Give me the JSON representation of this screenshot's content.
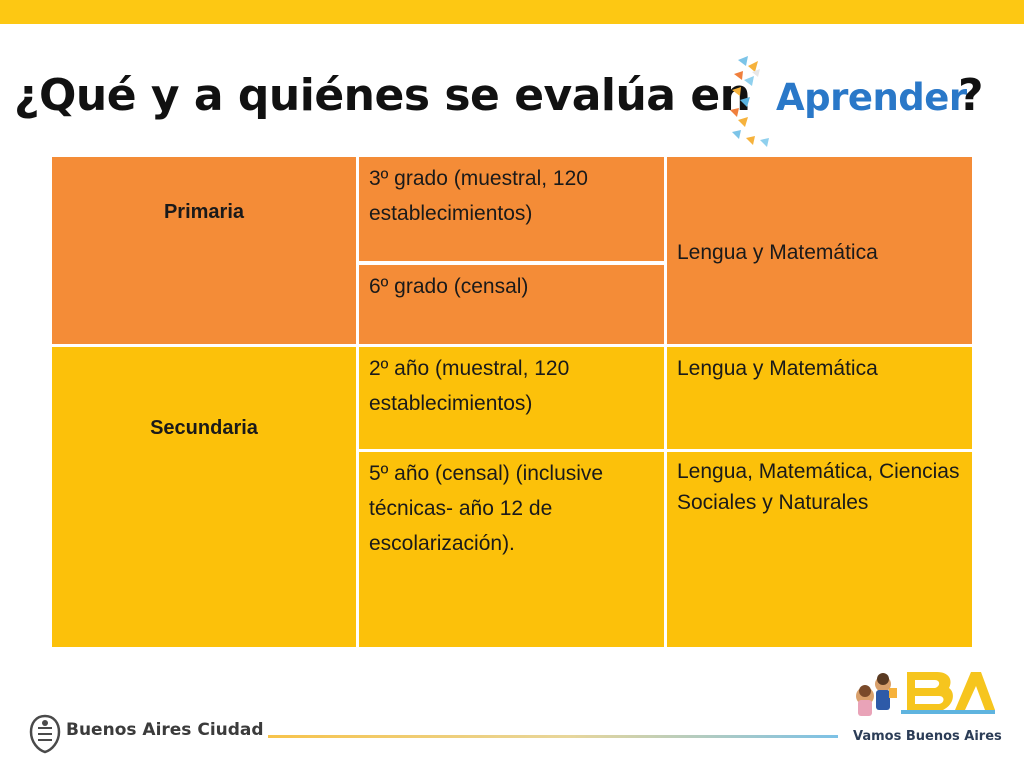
{
  "header": {
    "title": "¿Qué y a quiénes se evalúa en",
    "title_end": "?",
    "logo_text": "Aprender"
  },
  "table": {
    "primaria": {
      "label": "Primaria",
      "rows": [
        {
          "grade": "3º grado (muestral, 120 establecimientos)"
        },
        {
          "grade": "6º grado (censal)"
        }
      ],
      "subjects": "Lengua y Matemática"
    },
    "secundaria": {
      "label": "Secundaria",
      "rows": [
        {
          "grade": "2º año (muestral, 120 establecimientos)",
          "subjects": "Lengua y Matemática"
        },
        {
          "grade": "5º año (censal) (inclusive técnicas- año 12 de escolarización).",
          "subjects": "Lengua, Matemática, Ciencias Sociales y Naturales"
        }
      ]
    }
  },
  "footer": {
    "left_logo": "Buenos Aires Ciudad",
    "right_logo": "Vamos Buenos Aires"
  },
  "colors": {
    "top_bar": "#fdc813",
    "primaria": "#f48c37",
    "secundaria": "#fcc10a",
    "aprender_blue": "#2a78c8"
  }
}
